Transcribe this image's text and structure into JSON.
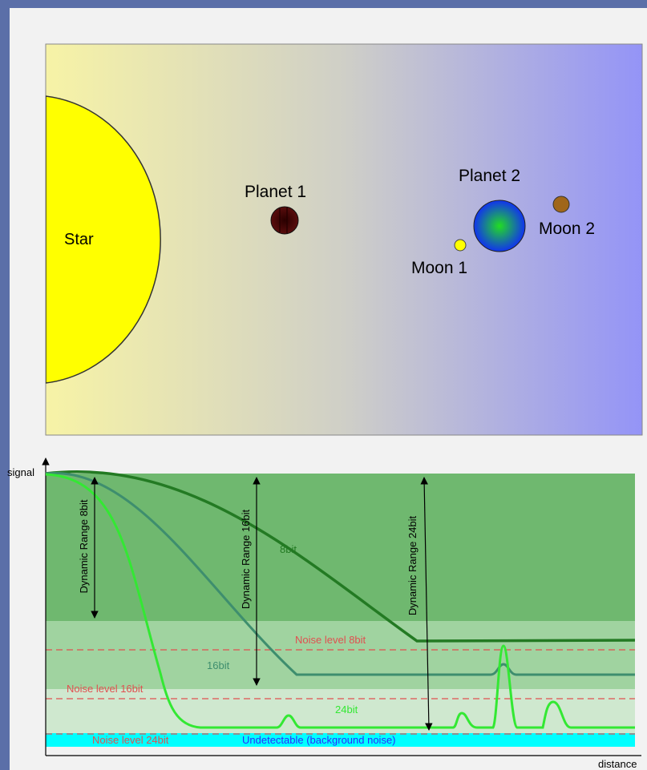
{
  "colors": {
    "slide_background": "#5b6fa8",
    "panel_background": "#f2f2f2",
    "sky_gradient_start": "#f7f3a6",
    "sky_gradient_mid": "#cfcfc7",
    "sky_gradient_end": "#9494f7",
    "star_fill": "#ffff00",
    "planet1_fill": "#5a0d0d",
    "planet2_gradient_inner": "#22dd22",
    "planet2_gradient_outer": "#1133ee",
    "moon1_fill": "#ffff00",
    "moon2_fill": "#a0661a",
    "band_8bit": "#6fb86f",
    "band_16bit": "#a0d3a0",
    "band_24bit": "#cfe8cf",
    "band_undetectable": "#00ffff",
    "curve_8bit": "#237a23",
    "curve_16bit": "#3e8e6e",
    "curve_24bit": "#33e833",
    "noise_line": "#e05050",
    "undetectable_text": "#2a2aff"
  },
  "scene": {
    "star_label": "Star",
    "planet1_label": "Planet 1",
    "planet2_label": "Planet 2",
    "moon1_label": "Moon 1",
    "moon2_label": "Moon 2"
  },
  "signal_plot": {
    "y_axis_label": "signal",
    "x_axis_label": "distance",
    "dynamic_range_8bit": "Dynamic Range 8bit",
    "dynamic_range_16bit": "Dynamic Range 16bit",
    "dynamic_range_24bit": "Dynamic Range 24bit",
    "curve_8bit_label": "8bit",
    "curve_16bit_label": "16bit",
    "curve_24bit_label": "24bit",
    "noise_8bit_label": "Noise level 8bit",
    "noise_16bit_label": "Noise level 16bit",
    "noise_24bit_label": "Noise level 24bit",
    "undetectable_label": "Undetectable (background noise)"
  }
}
